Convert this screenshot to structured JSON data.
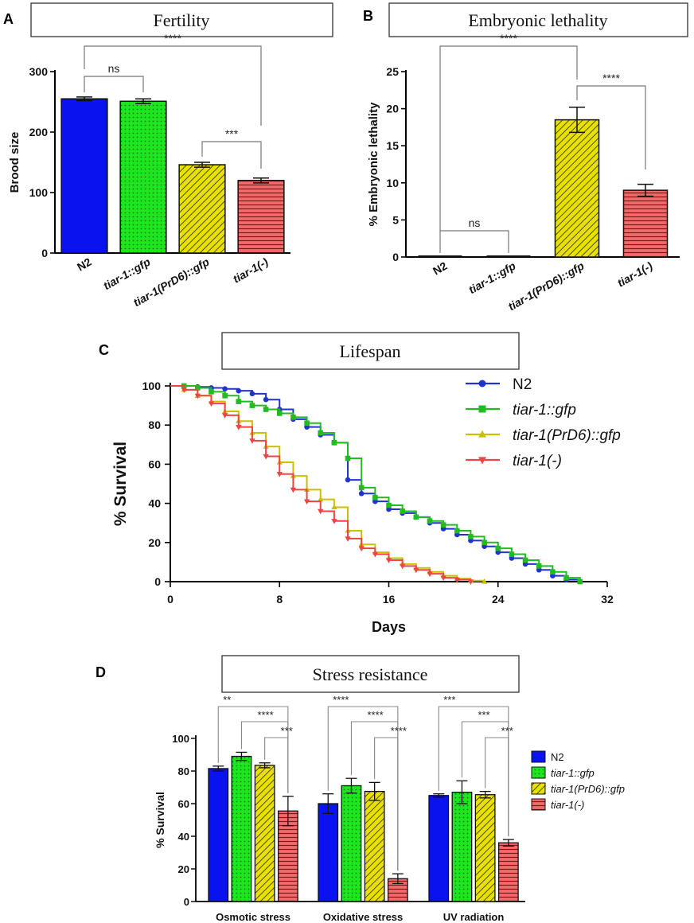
{
  "panels": {
    "A": {
      "label": "A",
      "title": "Fertility"
    },
    "B": {
      "label": "B",
      "title": "Embryonic lethality"
    },
    "C": {
      "label": "C",
      "title": "Lifespan"
    },
    "D": {
      "label": "D",
      "title": "Stress resistance"
    }
  },
  "colors": {
    "n2": "#0a12f0",
    "gfp": "#1ee61e",
    "prd6": "#e8e000",
    "ko": "#f26a6a",
    "n2_line": "#2233cc",
    "gfp_line": "#22bb22",
    "prd6_line": "#c8c000",
    "ko_line": "#ee4444"
  },
  "chart_data": [
    {
      "id": "fertility",
      "type": "bar",
      "title": "Fertility",
      "ylabel": "Brood size",
      "xlabel": "",
      "ylim": [
        0,
        300
      ],
      "yticks": [
        "0",
        "100",
        "200",
        "300"
      ],
      "categories": [
        "N2",
        "tiar-1::gfp",
        "tiar-1(PrD6)::gfp",
        "tiar-1(-)"
      ],
      "values": [
        255,
        251,
        146,
        120
      ],
      "errors": [
        3,
        4,
        4,
        4
      ],
      "significance": [
        {
          "from": 0,
          "to": 1,
          "label": "ns"
        },
        {
          "from": 0,
          "to": 3,
          "label": "****"
        },
        {
          "from": 2,
          "to": 3,
          "label": "***"
        }
      ]
    },
    {
      "id": "lethality",
      "type": "bar",
      "title": "Embryonic lethality",
      "ylabel": "% Embryonic lethality",
      "xlabel": "",
      "ylim": [
        0,
        25
      ],
      "yticks": [
        "0",
        "5",
        "10",
        "15",
        "20",
        "25"
      ],
      "categories": [
        "N2",
        "tiar-1::gfp",
        "tiar-1(PrD6)::gfp",
        "tiar-1(-)"
      ],
      "values": [
        0,
        0,
        18.5,
        9
      ],
      "errors": [
        0,
        0,
        1.7,
        0.8
      ],
      "significance": [
        {
          "from": 0,
          "to": 1,
          "label": "ns"
        },
        {
          "from": 0,
          "to": 2,
          "label": "****"
        },
        {
          "from": 2,
          "to": 3,
          "label": "****"
        }
      ]
    },
    {
      "id": "lifespan",
      "type": "line",
      "title": "Lifespan",
      "xlabel": "Days",
      "ylabel": "% Survival",
      "xlim": [
        0,
        32
      ],
      "ylim": [
        0,
        100
      ],
      "xticks": [
        "0",
        "8",
        "16",
        "24",
        "32"
      ],
      "yticks": [
        "0",
        "20",
        "40",
        "60",
        "80",
        "100"
      ],
      "series": [
        {
          "name": "N2",
          "marker": "circle",
          "x": [
            0,
            1,
            2,
            3,
            4,
            5,
            6,
            7,
            8,
            9,
            10,
            11,
            12,
            13,
            14,
            15,
            16,
            17,
            18,
            19,
            20,
            21,
            22,
            23,
            24,
            25,
            26,
            27,
            28,
            29,
            30
          ],
          "y": [
            100,
            100,
            99.5,
            99,
            98.5,
            97.5,
            96,
            93,
            88,
            83,
            79,
            75,
            71,
            52,
            45,
            41,
            37,
            35,
            33,
            30,
            27,
            24,
            21,
            18,
            15,
            12,
            9,
            6,
            3,
            1,
            0
          ]
        },
        {
          "name": "tiar-1::gfp",
          "marker": "square",
          "x": [
            0,
            1,
            2,
            3,
            4,
            5,
            6,
            7,
            8,
            9,
            10,
            11,
            12,
            13,
            14,
            15,
            16,
            17,
            18,
            19,
            20,
            21,
            22,
            23,
            24,
            25,
            26,
            27,
            28,
            29,
            30
          ],
          "y": [
            100,
            100,
            99,
            97,
            95,
            92,
            90,
            88,
            86,
            84,
            81,
            76,
            71,
            63,
            48,
            43,
            39,
            36,
            33,
            31,
            29,
            26,
            23,
            20,
            17,
            14,
            11,
            8,
            5,
            2,
            0
          ]
        },
        {
          "name": "tiar-1(PrD6)::gfp",
          "marker": "triangle-up",
          "x": [
            0,
            1,
            2,
            3,
            4,
            5,
            6,
            7,
            8,
            9,
            10,
            11,
            12,
            13,
            14,
            15,
            16,
            17,
            18,
            19,
            20,
            21,
            22,
            23
          ],
          "y": [
            100,
            98,
            95,
            92,
            87,
            82,
            76,
            69,
            61,
            54,
            47,
            42,
            38,
            26,
            19,
            15,
            12,
            9,
            7,
            5,
            3,
            1.5,
            0.5,
            0
          ]
        },
        {
          "name": "tiar-1(-)",
          "marker": "triangle-down",
          "x": [
            0,
            1,
            2,
            3,
            4,
            5,
            6,
            7,
            8,
            9,
            10,
            11,
            12,
            13,
            14,
            15,
            16,
            17,
            18,
            19,
            20,
            21,
            22
          ],
          "y": [
            100,
            98,
            95,
            91,
            85,
            79,
            72,
            64,
            55,
            47,
            41,
            36,
            31,
            22,
            17,
            14,
            11,
            8,
            6,
            4,
            2,
            1,
            0
          ]
        }
      ]
    },
    {
      "id": "stress",
      "type": "bar",
      "title": "Stress resistance",
      "ylabel": "% Survival",
      "xlabel": "",
      "ylim": [
        0,
        100
      ],
      "yticks": [
        "0",
        "20",
        "40",
        "60",
        "80",
        "100"
      ],
      "categories": [
        "Osmotic stress",
        "Oxidative stress",
        "UV radiation"
      ],
      "series": [
        {
          "name": "N2",
          "values": [
            81.5,
            60,
            65
          ],
          "errors": [
            1.5,
            6,
            1
          ]
        },
        {
          "name": "tiar-1::gfp",
          "values": [
            89,
            71,
            67
          ],
          "errors": [
            2.5,
            4.5,
            7
          ]
        },
        {
          "name": "tiar-1(PrD6)::gfp",
          "values": [
            83.5,
            67.5,
            65.5
          ],
          "errors": [
            1.5,
            5.5,
            2
          ]
        },
        {
          "name": "tiar-1(-)",
          "values": [
            55.5,
            14,
            36
          ],
          "errors": [
            9,
            3,
            2
          ]
        }
      ],
      "significance": [
        {
          "group": 0,
          "from": 0,
          "to": 3,
          "label": "**"
        },
        {
          "group": 0,
          "from": 1,
          "to": 3,
          "label": "****"
        },
        {
          "group": 0,
          "from": 2,
          "to": 3,
          "label": "***"
        },
        {
          "group": 1,
          "from": 0,
          "to": 3,
          "label": "****"
        },
        {
          "group": 1,
          "from": 1,
          "to": 3,
          "label": "****"
        },
        {
          "group": 1,
          "from": 2,
          "to": 3,
          "label": "****"
        },
        {
          "group": 2,
          "from": 0,
          "to": 3,
          "label": "***"
        },
        {
          "group": 2,
          "from": 1,
          "to": 3,
          "label": "***"
        },
        {
          "group": 2,
          "from": 2,
          "to": 3,
          "label": "***"
        }
      ]
    }
  ]
}
